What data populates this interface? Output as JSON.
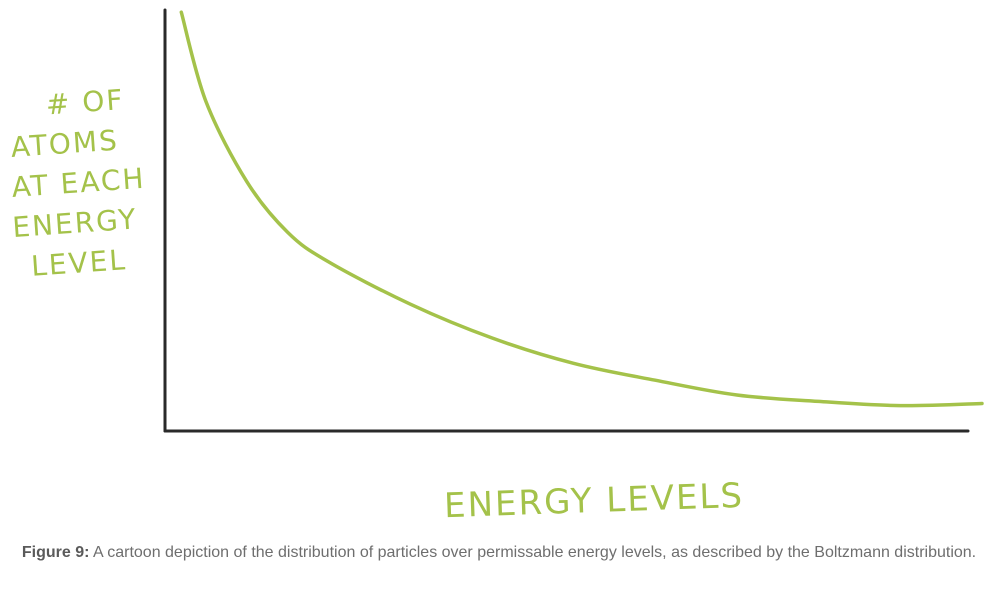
{
  "chart_data": {
    "type": "line",
    "title": "",
    "ylabel_lines": [
      "# OF",
      "ATOMS",
      "AT EACH",
      "ENERGY",
      "LEVEL"
    ],
    "xlabel": "ENERGY LEVELS",
    "x": [
      0.02,
      0.05,
      0.1,
      0.15,
      0.2,
      0.3,
      0.4,
      0.5,
      0.6,
      0.7,
      0.8,
      0.9,
      1.0
    ],
    "y": [
      0.99,
      0.78,
      0.59,
      0.47,
      0.4,
      0.3,
      0.22,
      0.16,
      0.12,
      0.085,
      0.07,
      0.06,
      0.065
    ],
    "xlim": [
      0,
      1
    ],
    "ylim": [
      0,
      1
    ],
    "grid": false,
    "tick_labels": false,
    "line_color": "#a4c24a",
    "axis_color": "#2a2a2a",
    "label_color": "#a4c24a"
  },
  "caption": {
    "label": "Figure 9:",
    "text": " A cartoon depiction of the distribution of particles over permissable energy levels, as described by the Boltzmann distribution."
  }
}
